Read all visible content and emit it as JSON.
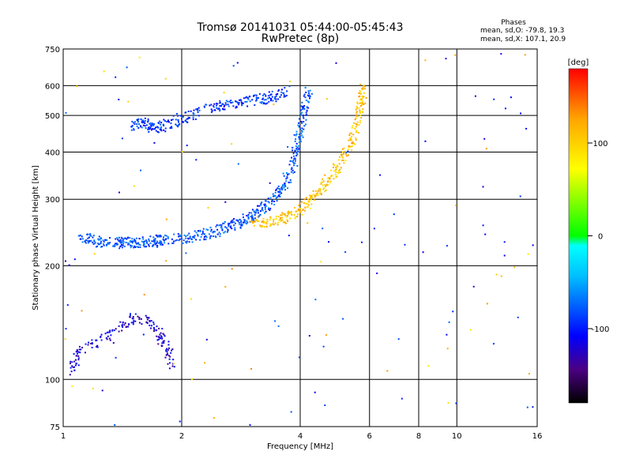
{
  "header": {
    "title_line1": "Tromsø 20141031 05:44:00-05:45:43",
    "title_line2": "RwPretec (8p)",
    "stats_heading": "Phases",
    "stats_o": "mean, sd,O: -79.8, 19.3",
    "stats_x": "mean, sd,X: 107.1, 20.9"
  },
  "chart_data": {
    "type": "scatter",
    "title": "Tromsø 20141031 05:44:00-05:45:43",
    "subtitle": "RwPretec (8p)",
    "xlabel": "Frequency [MHz]",
    "ylabel": "Stationary phase Virtual Height [km]",
    "x_scale": "log",
    "y_scale": "log",
    "xlim": [
      1,
      16
    ],
    "ylim": [
      75,
      750
    ],
    "x_ticks": [
      1,
      2,
      4,
      8,
      16
    ],
    "x_minor_ticks": [
      6,
      10
    ],
    "y_ticks": [
      75,
      100,
      200,
      300,
      400,
      500,
      600,
      750
    ],
    "grid": true,
    "colorbar": {
      "label": "[deg]",
      "range": [
        -180,
        180
      ],
      "ticks": [
        100,
        0,
        -100
      ],
      "colors": [
        "#000000",
        "#4b0082",
        "#0000ff",
        "#00bfff",
        "#00ffff",
        "#00ff00",
        "#ffff00",
        "#ffa500",
        "#ff0000"
      ]
    },
    "series": [
      {
        "description": "O-mode F-layer trace (phase near -80 deg)",
        "phase_deg": -80,
        "points": [
          [
            1.1,
            240
          ],
          [
            1.2,
            232
          ],
          [
            1.3,
            230
          ],
          [
            1.4,
            230
          ],
          [
            1.5,
            230
          ],
          [
            1.6,
            231
          ],
          [
            1.7,
            232
          ],
          [
            1.8,
            234
          ],
          [
            2.0,
            236
          ],
          [
            2.2,
            240
          ],
          [
            2.4,
            245
          ],
          [
            2.6,
            252
          ],
          [
            2.8,
            260
          ],
          [
            3.0,
            270
          ],
          [
            3.2,
            282
          ],
          [
            3.4,
            298
          ],
          [
            3.6,
            320
          ],
          [
            3.8,
            360
          ],
          [
            3.9,
            400
          ],
          [
            4.0,
            460
          ],
          [
            4.1,
            520
          ],
          [
            4.2,
            580
          ]
        ]
      },
      {
        "description": "X-mode F-layer trace (phase near +107 deg)",
        "phase_deg": 107,
        "points": [
          [
            3.0,
            262
          ],
          [
            3.3,
            262
          ],
          [
            3.6,
            268
          ],
          [
            3.9,
            278
          ],
          [
            4.2,
            295
          ],
          [
            4.5,
            318
          ],
          [
            4.8,
            345
          ],
          [
            5.1,
            380
          ],
          [
            5.4,
            430
          ],
          [
            5.6,
            480
          ],
          [
            5.7,
            540
          ],
          [
            5.8,
            600
          ]
        ]
      },
      {
        "description": "Upper O-mode echoes (phase near -90 deg)",
        "phase_deg": -90,
        "points": [
          [
            1.5,
            470
          ],
          [
            1.6,
            480
          ],
          [
            1.7,
            460
          ],
          [
            1.8,
            470
          ],
          [
            2.0,
            490
          ],
          [
            2.2,
            510
          ],
          [
            2.5,
            530
          ],
          [
            2.8,
            540
          ],
          [
            3.1,
            550
          ],
          [
            3.4,
            560
          ],
          [
            3.7,
            580
          ]
        ]
      },
      {
        "description": "Sporadic low-height echoes (phase near -120 deg)",
        "phase_deg": -120,
        "points": [
          [
            1.05,
            105
          ],
          [
            1.1,
            120
          ],
          [
            1.3,
            130
          ],
          [
            1.5,
            145
          ],
          [
            1.7,
            140
          ],
          [
            1.8,
            125
          ],
          [
            1.9,
            110
          ]
        ]
      }
    ]
  }
}
